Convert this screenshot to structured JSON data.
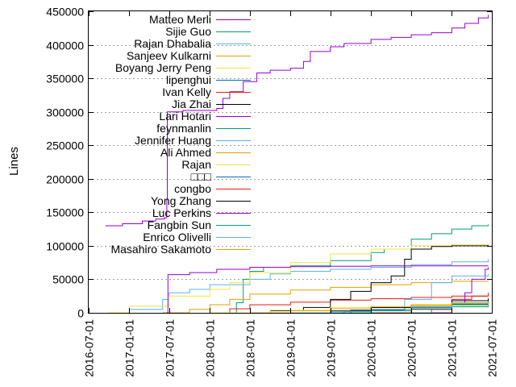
{
  "chart_data": {
    "type": "line",
    "ylabel": "Lines",
    "xlabel": "",
    "ylim": [
      0,
      450000
    ],
    "xlim": [
      "2016-07-01",
      "2021-07-01"
    ],
    "y_ticks": [
      0,
      50000,
      100000,
      150000,
      200000,
      250000,
      300000,
      350000,
      400000,
      450000
    ],
    "x_ticks": [
      "2016-07-01",
      "2017-01-01",
      "2017-07-01",
      "2018-01-01",
      "2018-07-01",
      "2019-01-01",
      "2019-07-01",
      "2020-01-01",
      "2020-07-01",
      "2021-01-01",
      "2021-07-01"
    ],
    "grid": "horizontal dotted",
    "legend_position": "top-left",
    "series": [
      {
        "name": "Matteo Merli",
        "color": "#9400d3",
        "points": [
          [
            "2016-09-15",
            130000
          ],
          [
            "2016-12-01",
            133000
          ],
          [
            "2017-03-01",
            137000
          ],
          [
            "2017-05-01",
            140000
          ],
          [
            "2017-06-10",
            142000
          ],
          [
            "2017-06-20",
            170000
          ],
          [
            "2017-06-22",
            300000
          ],
          [
            "2017-09-01",
            302000
          ],
          [
            "2018-02-01",
            305000
          ],
          [
            "2018-03-01",
            320000
          ],
          [
            "2018-04-01",
            330000
          ],
          [
            "2018-06-01",
            345000
          ],
          [
            "2018-08-01",
            358000
          ],
          [
            "2018-10-01",
            362000
          ],
          [
            "2019-01-01",
            365000
          ],
          [
            "2019-03-01",
            375000
          ],
          [
            "2019-04-01",
            390000
          ],
          [
            "2019-07-01",
            397000
          ],
          [
            "2019-09-01",
            402000
          ],
          [
            "2020-01-01",
            408000
          ],
          [
            "2020-04-01",
            411000
          ],
          [
            "2020-07-01",
            415000
          ],
          [
            "2020-10-01",
            418000
          ],
          [
            "2021-01-01",
            425000
          ],
          [
            "2021-03-01",
            432000
          ],
          [
            "2021-05-01",
            440000
          ],
          [
            "2021-06-15",
            445000
          ]
        ]
      },
      {
        "name": "Sijie Guo",
        "color": "#009e73",
        "points": [
          [
            "2018-02-01",
            0
          ],
          [
            "2018-05-01",
            15000
          ],
          [
            "2018-06-01",
            50000
          ],
          [
            "2018-07-01",
            62000
          ],
          [
            "2018-09-01",
            68000
          ],
          [
            "2019-01-01",
            70000
          ],
          [
            "2019-07-01",
            78000
          ],
          [
            "2020-01-01",
            90000
          ],
          [
            "2020-03-01",
            95000
          ],
          [
            "2020-07-01",
            110000
          ],
          [
            "2020-10-01",
            118000
          ],
          [
            "2021-01-01",
            125000
          ],
          [
            "2021-04-01",
            130000
          ],
          [
            "2021-06-15",
            132000
          ]
        ]
      },
      {
        "name": "Rajan Dhabalia",
        "color": "#56b4e9",
        "points": [
          [
            "2016-10-01",
            0
          ],
          [
            "2017-01-01",
            5000
          ],
          [
            "2017-06-01",
            20000
          ],
          [
            "2017-07-01",
            30000
          ],
          [
            "2017-10-01",
            35000
          ],
          [
            "2018-01-01",
            42000
          ],
          [
            "2018-07-01",
            50000
          ],
          [
            "2018-10-01",
            58000
          ],
          [
            "2019-01-01",
            62000
          ],
          [
            "2019-07-01",
            65000
          ],
          [
            "2020-01-01",
            68000
          ],
          [
            "2020-07-01",
            72000
          ],
          [
            "2021-01-01",
            76000
          ],
          [
            "2021-06-15",
            80000
          ]
        ]
      },
      {
        "name": "Sanjeev Kulkarni",
        "color": "#e69f00",
        "points": [
          [
            "2017-06-01",
            0
          ],
          [
            "2017-10-01",
            5000
          ],
          [
            "2018-01-01",
            12000
          ],
          [
            "2018-04-01",
            20000
          ],
          [
            "2018-07-01",
            28000
          ],
          [
            "2019-01-01",
            34000
          ],
          [
            "2019-07-01",
            38000
          ],
          [
            "2020-01-01",
            42000
          ],
          [
            "2020-07-01",
            45000
          ],
          [
            "2021-01-01",
            47000
          ],
          [
            "2021-06-15",
            48000
          ]
        ]
      },
      {
        "name": "Boyang Jerry Peng",
        "color": "#f0e442",
        "points": [
          [
            "2016-10-01",
            0
          ],
          [
            "2017-01-01",
            10000
          ],
          [
            "2017-07-01",
            25000
          ],
          [
            "2018-01-01",
            35000
          ],
          [
            "2018-04-01",
            45000
          ],
          [
            "2018-07-01",
            60000
          ],
          [
            "2019-01-01",
            75000
          ],
          [
            "2019-07-01",
            88000
          ],
          [
            "2020-01-01",
            95000
          ],
          [
            "2020-07-01",
            100000
          ],
          [
            "2021-01-01",
            102000
          ],
          [
            "2021-06-15",
            103000
          ]
        ]
      },
      {
        "name": "lipenghui",
        "color": "#0072b2",
        "points": [
          [
            "2019-06-01",
            0
          ],
          [
            "2019-09-01",
            2000
          ],
          [
            "2020-01-01",
            5000
          ],
          [
            "2020-07-01",
            12000
          ],
          [
            "2021-01-01",
            18000
          ],
          [
            "2021-06-15",
            22000
          ]
        ]
      },
      {
        "name": "Ivan Kelly",
        "color": "#e51e10",
        "points": [
          [
            "2018-01-01",
            0
          ],
          [
            "2018-04-01",
            6000
          ],
          [
            "2018-07-01",
            12000
          ],
          [
            "2019-01-01",
            16000
          ],
          [
            "2019-07-01",
            19000
          ],
          [
            "2020-01-01",
            21000
          ],
          [
            "2020-07-01",
            23000
          ],
          [
            "2021-01-01",
            25000
          ],
          [
            "2021-06-15",
            27000
          ]
        ]
      },
      {
        "name": "Jia Zhai",
        "color": "#000000",
        "points": [
          [
            "2018-06-01",
            0
          ],
          [
            "2018-10-01",
            3000
          ],
          [
            "2019-03-01",
            8000
          ],
          [
            "2019-07-01",
            20000
          ],
          [
            "2019-10-01",
            32000
          ],
          [
            "2020-01-01",
            45000
          ],
          [
            "2020-04-01",
            55000
          ],
          [
            "2020-06-01",
            80000
          ],
          [
            "2020-07-01",
            95000
          ],
          [
            "2020-10-01",
            99000
          ],
          [
            "2021-01-01",
            100000
          ],
          [
            "2021-06-15",
            101000
          ]
        ]
      },
      {
        "name": "Lari Hotari",
        "color": "#9400d3",
        "points": [
          [
            "2020-07-01",
            0
          ],
          [
            "2021-01-01",
            12000
          ],
          [
            "2021-03-01",
            30000
          ],
          [
            "2021-04-01",
            50000
          ],
          [
            "2021-06-01",
            65000
          ],
          [
            "2021-06-15",
            68000
          ]
        ]
      },
      {
        "name": "feynmanlin",
        "color": "#009e73",
        "points": [
          [
            "2020-06-01",
            0
          ],
          [
            "2020-10-01",
            5000
          ],
          [
            "2021-01-01",
            12000
          ],
          [
            "2021-06-15",
            18000
          ]
        ]
      },
      {
        "name": "Jennifer Huang",
        "color": "#56b4e9",
        "points": [
          [
            "2019-10-01",
            0
          ],
          [
            "2020-01-01",
            8000
          ],
          [
            "2020-06-01",
            20000
          ],
          [
            "2020-10-01",
            45000
          ],
          [
            "2021-01-01",
            55000
          ],
          [
            "2021-06-15",
            58000
          ]
        ]
      },
      {
        "name": "Ali Ahmed",
        "color": "#e69f00",
        "points": [
          [
            "2019-09-01",
            0
          ],
          [
            "2020-01-01",
            5000
          ],
          [
            "2020-07-01",
            10000
          ],
          [
            "2021-01-01",
            15000
          ],
          [
            "2021-06-15",
            18000
          ]
        ]
      },
      {
        "name": "Rajan",
        "color": "#f0e442",
        "points": [
          [
            "2018-01-01",
            0
          ],
          [
            "2018-10-01",
            4000
          ],
          [
            "2019-07-01",
            8000
          ],
          [
            "2020-07-01",
            11000
          ],
          [
            "2021-06-15",
            13000
          ]
        ]
      },
      {
        "name": "□□□",
        "color": "#0072b2",
        "points": [
          [
            "2019-04-01",
            0
          ],
          [
            "2019-10-01",
            4000
          ],
          [
            "2020-06-01",
            8000
          ],
          [
            "2021-01-01",
            13000
          ],
          [
            "2021-06-15",
            16000
          ]
        ]
      },
      {
        "name": "congbo",
        "color": "#e51e10",
        "points": [
          [
            "2020-01-01",
            0
          ],
          [
            "2020-07-01",
            5000
          ],
          [
            "2021-01-01",
            20000
          ],
          [
            "2021-04-01",
            25000
          ],
          [
            "2021-06-15",
            30000
          ]
        ]
      },
      {
        "name": "Yong Zhang",
        "color": "#000000",
        "points": [
          [
            "2019-01-01",
            0
          ],
          [
            "2019-07-01",
            3000
          ],
          [
            "2020-01-01",
            8000
          ],
          [
            "2020-07-01",
            12000
          ],
          [
            "2021-01-01",
            18000
          ],
          [
            "2021-06-15",
            21000
          ]
        ]
      },
      {
        "name": "Luc Perkins",
        "color": "#9400d3",
        "points": [
          [
            "2017-06-20",
            0
          ],
          [
            "2017-06-25",
            57000
          ],
          [
            "2017-10-01",
            60000
          ],
          [
            "2018-02-01",
            65000
          ],
          [
            "2018-07-01",
            68000
          ],
          [
            "2019-01-01",
            69000
          ],
          [
            "2019-07-01",
            69500
          ],
          [
            "2020-01-01",
            70000
          ],
          [
            "2021-06-15",
            70000
          ]
        ]
      },
      {
        "name": "Fangbin Sun",
        "color": "#009e73",
        "points": [
          [
            "2019-07-01",
            0
          ],
          [
            "2020-01-01",
            3000
          ],
          [
            "2020-07-01",
            6000
          ],
          [
            "2021-01-01",
            9000
          ],
          [
            "2021-06-15",
            11000
          ]
        ]
      },
      {
        "name": "Enrico Olivelli",
        "color": "#56b4e9",
        "points": [
          [
            "2019-01-01",
            0
          ],
          [
            "2019-07-01",
            2000
          ],
          [
            "2020-01-01",
            5000
          ],
          [
            "2020-07-01",
            9000
          ],
          [
            "2021-01-01",
            14000
          ],
          [
            "2021-06-15",
            17000
          ]
        ]
      },
      {
        "name": "Masahiro Sakamoto",
        "color": "#e69f00",
        "points": [
          [
            "2018-07-01",
            0
          ],
          [
            "2019-01-01",
            3000
          ],
          [
            "2019-07-01",
            6000
          ],
          [
            "2020-01-01",
            9000
          ],
          [
            "2020-07-01",
            12000
          ],
          [
            "2021-01-01",
            15000
          ],
          [
            "2021-06-15",
            17000
          ]
        ]
      }
    ]
  }
}
